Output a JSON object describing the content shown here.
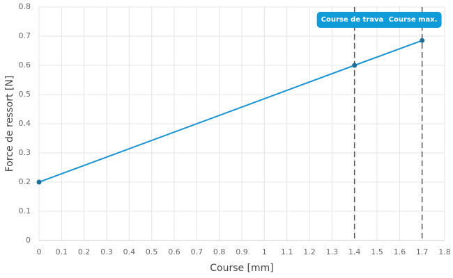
{
  "chart_data": {
    "type": "line",
    "x_label": "Course [mm]",
    "y_label": "Force de ressort [N]",
    "x": [
      0,
      1.4,
      1.7
    ],
    "values": [
      0.2,
      0.6,
      0.685
    ],
    "color": "#1a93d2",
    "marker_color": "#1d6f97",
    "xlim": [
      0,
      1.8
    ],
    "xticks": [
      0,
      0.1,
      0.2,
      0.3,
      0.4,
      0.5,
      0.6,
      0.7,
      0.8,
      0.9,
      1,
      1.1,
      1.2,
      1.3,
      1.4,
      1.5,
      1.6,
      1.7,
      1.8
    ],
    "ylim": [
      0,
      0.8
    ],
    "yticks": [
      0,
      0.1,
      0.2,
      0.3,
      0.4,
      0.5,
      0.6,
      0.7,
      0.8
    ],
    "grid": true,
    "annotations": [
      {
        "x": 1.4,
        "label": "Course de trava"
      },
      {
        "x": 1.7,
        "label": "Course max."
      }
    ],
    "annotation_color": "#0f9ad8"
  }
}
